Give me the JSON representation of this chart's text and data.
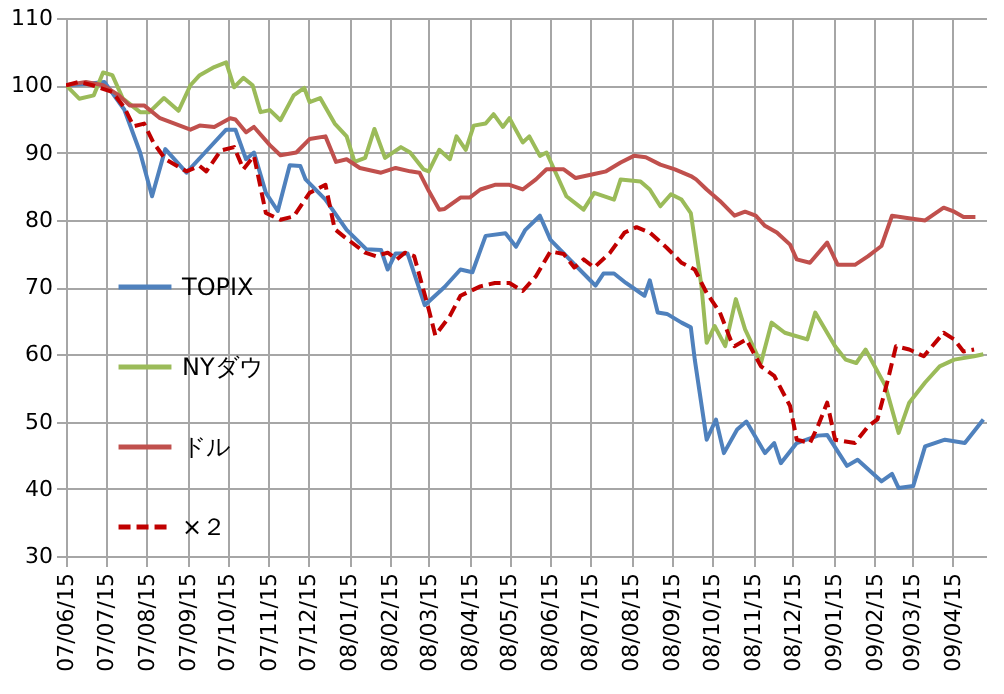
{
  "chart_data": {
    "type": "line",
    "xlim": [
      "2007-06-15",
      "2009-05-10"
    ],
    "xticks": [
      {
        "value": "2007-06-15",
        "label": "07/06/15"
      },
      {
        "value": "2007-07-15",
        "label": "07/07/15"
      },
      {
        "value": "2007-08-15",
        "label": "07/08/15"
      },
      {
        "value": "2007-09-15",
        "label": "07/09/15"
      },
      {
        "value": "2007-10-15",
        "label": "07/10/15"
      },
      {
        "value": "2007-11-15",
        "label": "07/11/15"
      },
      {
        "value": "2007-12-15",
        "label": "07/12/15"
      },
      {
        "value": "2008-01-15",
        "label": "08/01/15"
      },
      {
        "value": "2008-02-15",
        "label": "08/02/15"
      },
      {
        "value": "2008-03-15",
        "label": "08/03/15"
      },
      {
        "value": "2008-04-15",
        "label": "08/04/15"
      },
      {
        "value": "2008-05-15",
        "label": "08/05/15"
      },
      {
        "value": "2008-06-15",
        "label": "08/06/15"
      },
      {
        "value": "2008-07-15",
        "label": "08/07/15"
      },
      {
        "value": "2008-08-15",
        "label": "08/08/15"
      },
      {
        "value": "2008-09-15",
        "label": "08/09/15"
      },
      {
        "value": "2008-10-15",
        "label": "08/10/15"
      },
      {
        "value": "2008-11-15",
        "label": "08/11/15"
      },
      {
        "value": "2008-12-15",
        "label": "08/12/15"
      },
      {
        "value": "2009-01-15",
        "label": "09/01/15"
      },
      {
        "value": "2009-02-15",
        "label": "09/02/15"
      },
      {
        "value": "2009-03-15",
        "label": "09/03/15"
      },
      {
        "value": "2009-04-15",
        "label": "09/04/15"
      }
    ],
    "ylim": [
      30,
      110
    ],
    "yticks": [
      30,
      40,
      50,
      60,
      70,
      80,
      90,
      100,
      110
    ],
    "grid": true,
    "legend": "left",
    "series": [
      {
        "name": "TOPIX",
        "color": "#4f81bd",
        "line_style": "solid",
        "x": [
          "2007-06-15",
          "2007-06-30",
          "2007-07-14",
          "2007-07-29",
          "2007-08-10",
          "2007-08-19",
          "2007-08-29",
          "2007-09-14",
          "2007-09-28",
          "2007-10-14",
          "2007-10-21",
          "2007-10-29",
          "2007-11-04",
          "2007-11-13",
          "2007-11-22",
          "2007-12-01",
          "2007-12-09",
          "2007-12-13",
          "2007-12-28",
          "2008-01-13",
          "2008-01-28",
          "2008-02-08",
          "2008-02-13",
          "2008-02-19",
          "2008-02-28",
          "2008-03-12",
          "2008-03-27",
          "2008-04-08",
          "2008-04-17",
          "2008-04-27",
          "2008-05-12",
          "2008-05-20",
          "2008-05-27",
          "2008-06-07",
          "2008-06-15",
          "2008-06-30",
          "2008-07-15",
          "2008-07-19",
          "2008-07-25",
          "2008-08-02",
          "2008-08-11",
          "2008-08-25",
          "2008-08-29",
          "2008-09-04",
          "2008-09-11",
          "2008-09-22",
          "2008-09-29",
          "2008-10-02",
          "2008-10-11",
          "2008-10-18",
          "2008-10-24",
          "2008-11-03",
          "2008-11-10",
          "2008-11-24",
          "2008-12-01",
          "2008-12-06",
          "2008-12-18",
          "2009-01-03",
          "2009-01-10",
          "2009-01-25",
          "2009-02-02",
          "2009-02-20",
          "2009-02-28",
          "2009-03-05",
          "2009-03-16",
          "2009-03-25",
          "2009-04-09",
          "2009-04-24",
          "2009-05-08"
        ],
        "values": [
          100,
          100.2,
          100.5,
          96.4,
          90,
          83.5,
          90.5,
          87,
          90,
          93.4,
          93.4,
          89,
          90,
          84,
          81.3,
          88.1,
          88,
          86,
          83,
          78.5,
          75.6,
          75.5,
          72.6,
          75,
          75,
          67.3,
          70,
          72.6,
          72.2,
          77.6,
          78,
          76,
          78.5,
          80.6,
          77,
          74,
          71,
          70.2,
          72,
          72,
          70.6,
          68.7,
          71,
          66.2,
          66,
          64.7,
          64,
          59.2,
          47.3,
          50.3,
          45.3,
          48.8,
          50,
          45.3,
          46.8,
          43.8,
          46.8,
          47.9,
          48,
          43.4,
          44.3,
          41.1,
          42.2,
          40.1,
          40.4,
          46.3,
          47.3,
          46.8,
          50.3
        ]
      },
      {
        "name": "NYダウ",
        "color": "#9bbb59",
        "line_style": "solid",
        "x": [
          "2007-06-15",
          "2007-06-25",
          "2007-07-06",
          "2007-07-13",
          "2007-07-20",
          "2007-07-28",
          "2007-08-10",
          "2007-08-17",
          "2007-08-28",
          "2007-09-08",
          "2007-09-17",
          "2007-09-24",
          "2007-10-05",
          "2007-10-14",
          "2007-10-20",
          "2007-10-27",
          "2007-11-03",
          "2007-11-09",
          "2007-11-16",
          "2007-11-24",
          "2007-12-04",
          "2007-12-12",
          "2007-12-16",
          "2007-12-24",
          "2008-01-04",
          "2008-01-13",
          "2008-01-19",
          "2008-01-27",
          "2008-02-03",
          "2008-02-11",
          "2008-02-23",
          "2008-03-01",
          "2008-03-11",
          "2008-03-15",
          "2008-03-23",
          "2008-03-31",
          "2008-04-05",
          "2008-04-12",
          "2008-04-18",
          "2008-04-27",
          "2008-05-03",
          "2008-05-10",
          "2008-05-15",
          "2008-05-25",
          "2008-05-30",
          "2008-06-07",
          "2008-06-12",
          "2008-06-27",
          "2008-07-10",
          "2008-07-18",
          "2008-08-02",
          "2008-08-07",
          "2008-08-22",
          "2008-08-29",
          "2008-09-06",
          "2008-09-14",
          "2008-09-22",
          "2008-09-29",
          "2008-10-07",
          "2008-10-11",
          "2008-10-17",
          "2008-10-25",
          "2008-11-02",
          "2008-11-09",
          "2008-11-21",
          "2008-11-29",
          "2008-12-09",
          "2008-12-26",
          "2009-01-01",
          "2009-01-16",
          "2009-01-24",
          "2009-02-01",
          "2009-02-08",
          "2009-02-23",
          "2009-03-05",
          "2009-03-13",
          "2009-03-25",
          "2009-04-05",
          "2009-04-16",
          "2009-05-01",
          "2009-05-08"
        ],
        "values": [
          100,
          98,
          98.5,
          101.9,
          101.5,
          98,
          96,
          96,
          98.1,
          96.2,
          100,
          101.5,
          102.7,
          103.4,
          99.7,
          101.1,
          100,
          96,
          96.3,
          94.8,
          98.5,
          99.6,
          97.5,
          98.1,
          94.3,
          92.4,
          88.6,
          89.2,
          93.5,
          89.2,
          90.8,
          90,
          87.5,
          87.2,
          90.4,
          89,
          92.4,
          90.4,
          94,
          94.3,
          95.7,
          93.8,
          95.1,
          91.5,
          92.4,
          89.5,
          90,
          83.5,
          81.5,
          84,
          83,
          86,
          85.7,
          84.5,
          82,
          83.8,
          83,
          81,
          70.2,
          61.7,
          64.2,
          61.2,
          68.2,
          63.7,
          58.7,
          64.7,
          63.2,
          62.2,
          66.2,
          61.2,
          59.2,
          58.7,
          60.7,
          55.3,
          48.3,
          52.8,
          55.8,
          58.2,
          59.2,
          59.7,
          60
        ]
      },
      {
        "name": "ドル",
        "color": "#c0504d",
        "line_style": "solid",
        "x": [
          "2007-06-15",
          "2007-06-30",
          "2007-07-13",
          "2007-07-25",
          "2007-08-02",
          "2007-08-13",
          "2007-08-25",
          "2007-09-05",
          "2007-09-17",
          "2007-09-24",
          "2007-10-05",
          "2007-10-17",
          "2007-10-21",
          "2007-10-29",
          "2007-11-04",
          "2007-11-16",
          "2007-11-24",
          "2007-12-06",
          "2007-12-16",
          "2007-12-28",
          "2008-01-05",
          "2008-01-13",
          "2008-01-23",
          "2008-02-08",
          "2008-02-19",
          "2008-03-01",
          "2008-03-08",
          "2008-03-15",
          "2008-03-23",
          "2008-03-27",
          "2008-04-08",
          "2008-04-15",
          "2008-04-23",
          "2008-05-04",
          "2008-05-15",
          "2008-05-25",
          "2008-06-04",
          "2008-06-12",
          "2008-06-25",
          "2008-07-04",
          "2008-07-18",
          "2008-07-27",
          "2008-08-07",
          "2008-08-17",
          "2008-08-26",
          "2008-09-06",
          "2008-09-17",
          "2008-09-29",
          "2008-10-03",
          "2008-10-11",
          "2008-10-21",
          "2008-11-01",
          "2008-11-09",
          "2008-11-17",
          "2008-11-24",
          "2008-12-03",
          "2008-12-13",
          "2008-12-18",
          "2008-12-28",
          "2009-01-10",
          "2009-01-18",
          "2009-01-31",
          "2009-02-10",
          "2009-02-20",
          "2009-02-28",
          "2009-03-10",
          "2009-03-25",
          "2009-04-08",
          "2009-04-16",
          "2009-04-23",
          "2009-05-02"
        ],
        "values": [
          100,
          100.5,
          100,
          98.5,
          97,
          97,
          95.1,
          94.3,
          93.4,
          94,
          93.8,
          95.1,
          94.9,
          93,
          93.8,
          91.1,
          89.6,
          90,
          92,
          92.4,
          88.6,
          89,
          87.7,
          87,
          87.7,
          87.2,
          87,
          84.3,
          81.5,
          81.6,
          83.3,
          83.3,
          84.5,
          85.2,
          85.2,
          84.5,
          86,
          87.5,
          87.5,
          86.2,
          86.8,
          87.2,
          88.5,
          89.5,
          89.3,
          88.2,
          87.5,
          86.5,
          86,
          84.5,
          82.8,
          80.6,
          81.2,
          80.6,
          79.1,
          78.1,
          76.3,
          74.1,
          73.6,
          76.6,
          73.3,
          73.3,
          74.6,
          76.1,
          80.6,
          80.3,
          79.9,
          81.8,
          81.2,
          80.4,
          80.4
        ]
      },
      {
        "name": "×２",
        "color": "#c00000",
        "line_style": "dashed",
        "x": [
          "2007-06-15",
          "2007-06-25",
          "2007-07-05",
          "2007-07-20",
          "2007-07-29",
          "2007-08-05",
          "2007-08-13",
          "2007-08-20",
          "2007-08-29",
          "2007-09-14",
          "2007-09-24",
          "2007-09-29",
          "2007-10-10",
          "2007-10-20",
          "2007-10-27",
          "2007-11-04",
          "2007-11-13",
          "2007-11-24",
          "2007-12-04",
          "2007-12-16",
          "2007-12-28",
          "2008-01-04",
          "2008-01-11",
          "2008-01-27",
          "2008-02-04",
          "2008-02-13",
          "2008-02-20",
          "2008-02-26",
          "2008-03-04",
          "2008-03-15",
          "2008-03-20",
          "2008-03-31",
          "2008-04-08",
          "2008-04-23",
          "2008-05-04",
          "2008-05-15",
          "2008-05-25",
          "2008-06-04",
          "2008-06-15",
          "2008-06-25",
          "2008-07-03",
          "2008-07-10",
          "2008-07-18",
          "2008-07-30",
          "2008-08-10",
          "2008-08-19",
          "2008-08-29",
          "2008-09-11",
          "2008-09-22",
          "2008-10-02",
          "2008-10-11",
          "2008-10-21",
          "2008-10-29",
          "2008-11-01",
          "2008-11-10",
          "2008-11-21",
          "2008-12-01",
          "2008-12-13",
          "2008-12-18",
          "2008-12-28",
          "2009-01-03",
          "2009-01-10",
          "2009-01-16",
          "2009-01-31",
          "2009-02-10",
          "2009-02-17",
          "2009-02-25",
          "2009-03-03",
          "2009-03-13",
          "2009-03-24",
          "2009-04-08",
          "2009-04-16",
          "2009-04-23",
          "2009-05-01"
        ],
        "values": [
          100,
          100.5,
          100,
          99,
          96.7,
          93.9,
          94.3,
          91.5,
          89,
          87.2,
          88,
          87.2,
          90.3,
          90.8,
          87.5,
          89.5,
          81,
          80,
          80.5,
          84,
          85.2,
          78.6,
          77.5,
          75.1,
          74.6,
          75.1,
          74.1,
          75.1,
          74.6,
          66.7,
          62.8,
          65.7,
          68.7,
          70.1,
          70.6,
          70.6,
          69.4,
          71.6,
          75.3,
          74.9,
          72.9,
          74.1,
          72.9,
          75.1,
          78.1,
          78.9,
          78.1,
          75.8,
          73.6,
          72.6,
          69.1,
          66.2,
          62.2,
          61.2,
          62.2,
          58.2,
          56.8,
          52.3,
          47.3,
          46.8,
          49.3,
          52.8,
          47.3,
          46.8,
          49.3,
          50.3,
          56.3,
          61.2,
          60.7,
          59.7,
          63.2,
          62.2,
          60.4,
          60.7
        ]
      }
    ]
  }
}
